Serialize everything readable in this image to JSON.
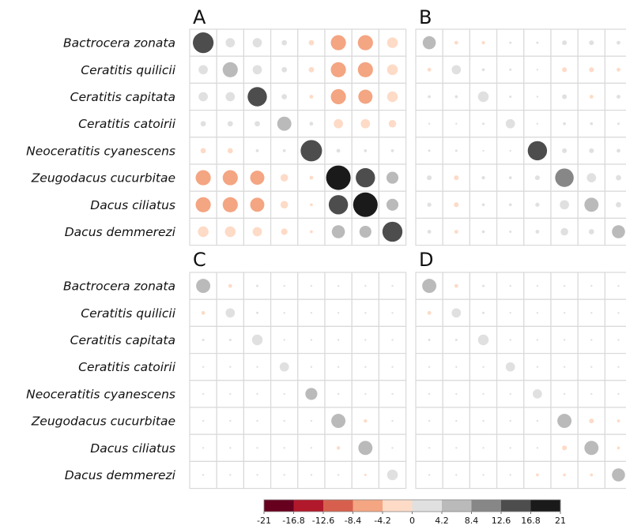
{
  "chart_data": {
    "type": "correlation-matrix (bubble grid)",
    "panels": [
      {
        "letter": "A",
        "rows": [
          "Bactrocera zonata",
          "Ceratitis quilicii",
          "Ceratitis capitata",
          "Ceratitis catoirii",
          "Neoceratitis cyanescens",
          "Zeugodacus cucurbitae",
          "Dacus ciliatus",
          "Dacus demmerezi"
        ],
        "values": [
          [
            15,
            3,
            3,
            1,
            -1,
            -8,
            -8,
            -4
          ],
          [
            3,
            8,
            3,
            1,
            -1,
            -8,
            -8,
            -4
          ],
          [
            3,
            3,
            13,
            1,
            -0.5,
            -8,
            -7,
            -4
          ],
          [
            1,
            1,
            1,
            7,
            0.5,
            -3,
            -3,
            -2
          ],
          [
            -1,
            -1,
            0.3,
            0.3,
            16,
            0.5,
            0.3,
            0.3
          ],
          [
            -8,
            -8,
            -7,
            -2,
            -0.5,
            21,
            13,
            5
          ],
          [
            -8,
            -8,
            -7,
            -2,
            -0.3,
            13,
            21,
            5
          ],
          [
            -4,
            -4,
            -3,
            -1.5,
            -0.3,
            6,
            5,
            14
          ]
        ]
      },
      {
        "letter": "B",
        "rows": [
          "Bactrocera zonata",
          "Ceratitis quilicii",
          "Ceratitis capitata",
          "Ceratitis catoirii",
          "Neoceratitis cyanescens",
          "Zeugodacus cucurbitae",
          "Dacus ciliatus",
          "Dacus demmerezi"
        ],
        "values": [
          [
            6,
            -0.5,
            -0.4,
            0.2,
            0.2,
            0.8,
            0.8,
            0.5
          ],
          [
            -0.5,
            3,
            0.3,
            0.2,
            0.1,
            -0.8,
            -0.8,
            -0.5
          ],
          [
            0.3,
            0.3,
            4,
            0.2,
            0.1,
            0.8,
            -0.5,
            0.5
          ],
          [
            0.1,
            0.1,
            0.2,
            3,
            0.1,
            0.3,
            0.3,
            0.2
          ],
          [
            0.2,
            0.2,
            0.1,
            0.1,
            13,
            0.8,
            0.8,
            0.5
          ],
          [
            0.8,
            -0.8,
            0.4,
            0.3,
            0.8,
            12,
            3,
            1
          ],
          [
            0.6,
            -0.8,
            0.3,
            0.3,
            0.6,
            3,
            7,
            1
          ],
          [
            0.5,
            -0.5,
            0.3,
            0.2,
            0.5,
            2,
            1,
            6
          ]
        ]
      },
      {
        "letter": "C",
        "rows": [
          "Bactrocera zonata",
          "Ceratitis quilicii",
          "Ceratitis capitata",
          "Ceratitis catoirii",
          "Neoceratitis cyanescens",
          "Zeugodacus cucurbitae",
          "Dacus ciliatus",
          "Dacus demmerezi"
        ],
        "values": [
          [
            7,
            -0.5,
            0.2,
            0.1,
            0.1,
            0.1,
            0.1,
            0.1
          ],
          [
            -0.5,
            3,
            0.2,
            0.1,
            0.1,
            0.1,
            0.1,
            0.1
          ],
          [
            0.2,
            0.2,
            4,
            0.1,
            0.1,
            0.1,
            0.1,
            0.1
          ],
          [
            0.1,
            0.1,
            0.1,
            3,
            0.1,
            0.1,
            0.1,
            0.1
          ],
          [
            0.1,
            0.1,
            0.1,
            0.1,
            5,
            0.1,
            0.1,
            0.1
          ],
          [
            0.1,
            0.1,
            0.1,
            0.1,
            0.1,
            7,
            -0.4,
            0.1
          ],
          [
            0.1,
            0.1,
            0.1,
            0.1,
            0.1,
            -0.4,
            7,
            0.1
          ],
          [
            0.1,
            0.1,
            0.1,
            0.1,
            0.1,
            0.1,
            -0.2,
            4
          ]
        ]
      },
      {
        "letter": "D",
        "rows": [
          "Bactrocera zonata",
          "Ceratitis quilicii",
          "Ceratitis capitata",
          "Ceratitis catoirii",
          "Neoceratitis cyanescens",
          "Zeugodacus cucurbitae",
          "Dacus ciliatus",
          "Dacus demmerezi"
        ],
        "values": [
          [
            7,
            -0.5,
            0.2,
            0.1,
            0.1,
            0.1,
            0.1,
            0.1
          ],
          [
            -0.5,
            3,
            0.2,
            0.1,
            0.1,
            0.1,
            0.1,
            0.1
          ],
          [
            0.2,
            0.2,
            4,
            0.1,
            0.1,
            0.1,
            0.1,
            0.1
          ],
          [
            0.1,
            0.1,
            0.1,
            3,
            0.1,
            0.1,
            0.1,
            0.1
          ],
          [
            0.1,
            0.1,
            0.1,
            0.1,
            3,
            0.1,
            0.1,
            0.1
          ],
          [
            0.1,
            0.1,
            0.1,
            0.1,
            0.1,
            7,
            -0.8,
            -0.3
          ],
          [
            0.1,
            0.1,
            0.1,
            0.1,
            0.1,
            -0.8,
            7,
            -0.3
          ],
          [
            0.1,
            0.1,
            0.1,
            0.1,
            -0.3,
            -0.3,
            -0.3,
            6
          ]
        ]
      }
    ],
    "value_range": [
      -21,
      21
    ],
    "colorbar": {
      "ticks": [
        "-21",
        "-16.8",
        "-12.6",
        "-8.4",
        "-4.2",
        "0",
        "4.2",
        "8.4",
        "12.6",
        "16.8",
        "21"
      ],
      "colors": [
        "#67001f",
        "#b2182b",
        "#d6604d",
        "#f4a582",
        "#fddbc7",
        "#e0e0e0",
        "#bababa",
        "#878787",
        "#4d4d4d",
        "#1a1a1a"
      ]
    },
    "grid": true,
    "legend_position": "bottom"
  }
}
